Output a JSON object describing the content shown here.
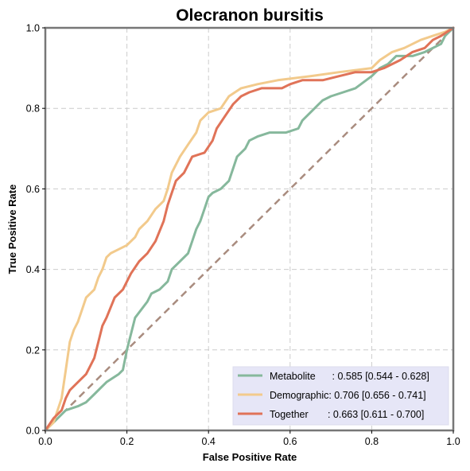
{
  "chart_data": {
    "type": "line",
    "title": "Olecranon bursitis",
    "xlabel": "False Positive Rate",
    "ylabel": "True Positive Rate",
    "xlim": [
      0,
      1
    ],
    "ylim": [
      0,
      1
    ],
    "xticks": [
      "0.0",
      "0.2",
      "0.4",
      "0.6",
      "0.8",
      "1.0"
    ],
    "yticks": [
      "0.0",
      "0.2",
      "0.4",
      "0.6",
      "0.8",
      "1.0"
    ],
    "grid": true,
    "legend_position": "bottom-right",
    "diagonal_color": "#a98c7f",
    "series": [
      {
        "name": "Metabolite",
        "label": "Metabolite      : 0.585 [0.544 - 0.628]",
        "color": "#86b89c",
        "points": [
          [
            0,
            0
          ],
          [
            0.02,
            0.02
          ],
          [
            0.05,
            0.05
          ],
          [
            0.08,
            0.06
          ],
          [
            0.1,
            0.07
          ],
          [
            0.12,
            0.09
          ],
          [
            0.15,
            0.12
          ],
          [
            0.18,
            0.14
          ],
          [
            0.19,
            0.15
          ],
          [
            0.2,
            0.2
          ],
          [
            0.22,
            0.28
          ],
          [
            0.25,
            0.32
          ],
          [
            0.26,
            0.34
          ],
          [
            0.28,
            0.35
          ],
          [
            0.3,
            0.37
          ],
          [
            0.31,
            0.4
          ],
          [
            0.33,
            0.42
          ],
          [
            0.35,
            0.44
          ],
          [
            0.36,
            0.47
          ],
          [
            0.37,
            0.5
          ],
          [
            0.38,
            0.52
          ],
          [
            0.39,
            0.55
          ],
          [
            0.4,
            0.58
          ],
          [
            0.41,
            0.59
          ],
          [
            0.43,
            0.6
          ],
          [
            0.45,
            0.62
          ],
          [
            0.46,
            0.65
          ],
          [
            0.47,
            0.68
          ],
          [
            0.49,
            0.7
          ],
          [
            0.5,
            0.72
          ],
          [
            0.52,
            0.73
          ],
          [
            0.55,
            0.74
          ],
          [
            0.59,
            0.74
          ],
          [
            0.62,
            0.75
          ],
          [
            0.63,
            0.77
          ],
          [
            0.65,
            0.79
          ],
          [
            0.67,
            0.81
          ],
          [
            0.68,
            0.82
          ],
          [
            0.7,
            0.83
          ],
          [
            0.73,
            0.84
          ],
          [
            0.76,
            0.85
          ],
          [
            0.8,
            0.88
          ],
          [
            0.82,
            0.9
          ],
          [
            0.84,
            0.91
          ],
          [
            0.86,
            0.93
          ],
          [
            0.9,
            0.93
          ],
          [
            0.93,
            0.94
          ],
          [
            0.97,
            0.96
          ],
          [
            0.98,
            0.98
          ],
          [
            1,
            1
          ]
        ]
      },
      {
        "name": "Demographic",
        "label": "Demographic: 0.706 [0.656 - 0.741]",
        "color": "#f2ca8c",
        "points": [
          [
            0,
            0
          ],
          [
            0.02,
            0.02
          ],
          [
            0.04,
            0.08
          ],
          [
            0.05,
            0.15
          ],
          [
            0.06,
            0.22
          ],
          [
            0.07,
            0.25
          ],
          [
            0.08,
            0.27
          ],
          [
            0.09,
            0.3
          ],
          [
            0.1,
            0.33
          ],
          [
            0.12,
            0.35
          ],
          [
            0.13,
            0.38
          ],
          [
            0.14,
            0.4
          ],
          [
            0.15,
            0.43
          ],
          [
            0.16,
            0.44
          ],
          [
            0.18,
            0.45
          ],
          [
            0.2,
            0.46
          ],
          [
            0.22,
            0.48
          ],
          [
            0.23,
            0.5
          ],
          [
            0.25,
            0.52
          ],
          [
            0.27,
            0.55
          ],
          [
            0.29,
            0.57
          ],
          [
            0.3,
            0.6
          ],
          [
            0.31,
            0.64
          ],
          [
            0.33,
            0.68
          ],
          [
            0.35,
            0.71
          ],
          [
            0.37,
            0.74
          ],
          [
            0.38,
            0.77
          ],
          [
            0.4,
            0.79
          ],
          [
            0.43,
            0.8
          ],
          [
            0.45,
            0.83
          ],
          [
            0.48,
            0.85
          ],
          [
            0.52,
            0.86
          ],
          [
            0.57,
            0.87
          ],
          [
            0.65,
            0.88
          ],
          [
            0.72,
            0.89
          ],
          [
            0.8,
            0.9
          ],
          [
            0.82,
            0.92
          ],
          [
            0.85,
            0.94
          ],
          [
            0.88,
            0.95
          ],
          [
            0.92,
            0.97
          ],
          [
            0.95,
            0.98
          ],
          [
            0.98,
            0.99
          ],
          [
            1,
            1
          ]
        ]
      },
      {
        "name": "Together",
        "label": "Together       : 0.663 [0.611 - 0.700]",
        "color": "#e07358",
        "points": [
          [
            0,
            0
          ],
          [
            0.02,
            0.03
          ],
          [
            0.04,
            0.05
          ],
          [
            0.05,
            0.08
          ],
          [
            0.06,
            0.1
          ],
          [
            0.08,
            0.12
          ],
          [
            0.1,
            0.14
          ],
          [
            0.12,
            0.18
          ],
          [
            0.13,
            0.22
          ],
          [
            0.14,
            0.26
          ],
          [
            0.15,
            0.28
          ],
          [
            0.17,
            0.33
          ],
          [
            0.19,
            0.35
          ],
          [
            0.21,
            0.39
          ],
          [
            0.23,
            0.42
          ],
          [
            0.25,
            0.44
          ],
          [
            0.27,
            0.47
          ],
          [
            0.29,
            0.52
          ],
          [
            0.3,
            0.56
          ],
          [
            0.31,
            0.59
          ],
          [
            0.32,
            0.62
          ],
          [
            0.34,
            0.64
          ],
          [
            0.36,
            0.68
          ],
          [
            0.39,
            0.69
          ],
          [
            0.41,
            0.72
          ],
          [
            0.42,
            0.75
          ],
          [
            0.44,
            0.78
          ],
          [
            0.46,
            0.81
          ],
          [
            0.48,
            0.83
          ],
          [
            0.5,
            0.84
          ],
          [
            0.53,
            0.85
          ],
          [
            0.58,
            0.85
          ],
          [
            0.6,
            0.86
          ],
          [
            0.63,
            0.87
          ],
          [
            0.68,
            0.87
          ],
          [
            0.72,
            0.88
          ],
          [
            0.76,
            0.89
          ],
          [
            0.8,
            0.89
          ],
          [
            0.83,
            0.9
          ],
          [
            0.87,
            0.92
          ],
          [
            0.9,
            0.94
          ],
          [
            0.93,
            0.95
          ],
          [
            0.95,
            0.97
          ],
          [
            0.97,
            0.98
          ],
          [
            1,
            1
          ]
        ]
      }
    ]
  }
}
